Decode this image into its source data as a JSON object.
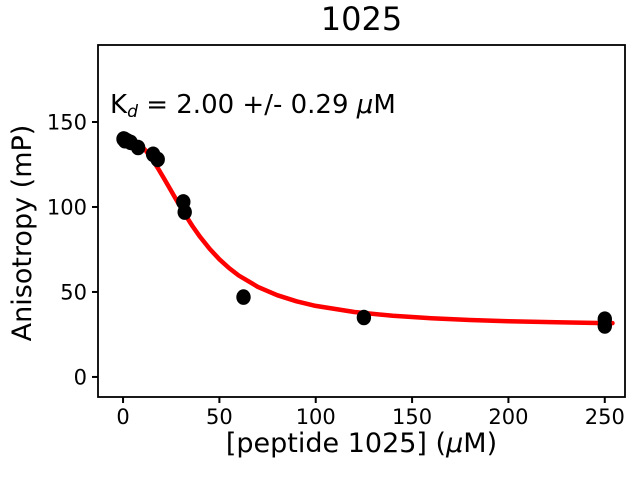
{
  "figure": {
    "title": "1025",
    "background": "#ffffff"
  },
  "annotation": {
    "k": "K",
    "sub": "d",
    "rest": " = 2.00 +/- 0.29 ",
    "mu": "μ",
    "unit": "M"
  },
  "axes": {
    "ylabel": "Anisotropy (mP)",
    "xlabel_prefix": "[peptide 1025] (",
    "xlabel_mu": "μ",
    "xlabel_suffix": "M)",
    "xticks": [
      0,
      50,
      100,
      150,
      200,
      250
    ],
    "yticks": [
      0,
      50,
      100,
      150
    ],
    "xlim": [
      -13,
      260.5
    ],
    "ylim": [
      -11.8,
      195.3
    ],
    "spine_color": "#000000",
    "tick_label_color": "#000000"
  },
  "chart_data": {
    "type": "scatter",
    "title": "1025",
    "xlabel": "[peptide 1025] (μM)",
    "ylabel": "Anisotropy (mP)",
    "annotation": "Kd = 2.00 +/- 0.29 μM",
    "kd_uM": 2.0,
    "kd_err_uM": 0.29,
    "legend": "none",
    "grid": false,
    "point_color": "#000000",
    "curve_color": "#ff0000",
    "points": [
      [
        0.24,
        140
      ],
      [
        0.49,
        140
      ],
      [
        0.98,
        139
      ],
      [
        1.95,
        139
      ],
      [
        3.9,
        138
      ],
      [
        7.8,
        135
      ],
      [
        15.6,
        131
      ],
      [
        18,
        128
      ],
      [
        31.25,
        103
      ],
      [
        32,
        97
      ],
      [
        62.5,
        47
      ],
      [
        125,
        35
      ],
      [
        250,
        34
      ],
      [
        250,
        30
      ]
    ],
    "fit_curve": [
      [
        0,
        141.0
      ],
      [
        3,
        140.6
      ],
      [
        6,
        139.1
      ],
      [
        9,
        136.5
      ],
      [
        12,
        132.9
      ],
      [
        15,
        128.3
      ],
      [
        18,
        123.0
      ],
      [
        21,
        117.3
      ],
      [
        24,
        111.4
      ],
      [
        28,
        103.5
      ],
      [
        32,
        95.9
      ],
      [
        36,
        88.8
      ],
      [
        40,
        82.4
      ],
      [
        45,
        75.3
      ],
      [
        50,
        69.2
      ],
      [
        55,
        64.1
      ],
      [
        60,
        59.7
      ],
      [
        70,
        53.0
      ],
      [
        80,
        48.1
      ],
      [
        90,
        44.5
      ],
      [
        100,
        41.8
      ],
      [
        120,
        38.2
      ],
      [
        140,
        36.0
      ],
      [
        160,
        34.5
      ],
      [
        180,
        33.5
      ],
      [
        200,
        32.8
      ],
      [
        225,
        32.2
      ],
      [
        250,
        31.7
      ],
      [
        254,
        31.7
      ]
    ]
  }
}
